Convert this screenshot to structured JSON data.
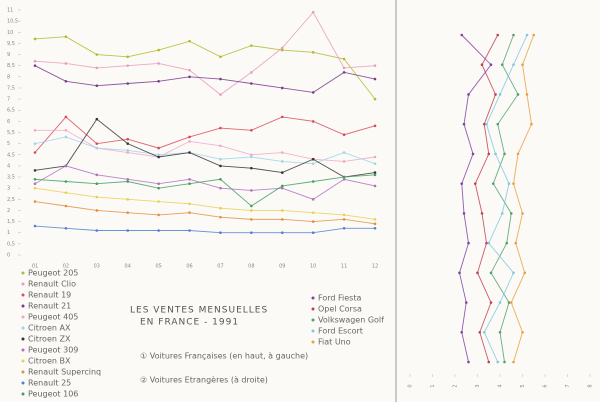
{
  "chart_data": [
    {
      "type": "line",
      "orientation": "vertical",
      "title": [
        "LES VENTES MENSUELLES",
        "EN FRANCE - 1991"
      ],
      "annotations": [
        "① Voitures Françaises (en haut, à gauche)",
        "② Voitures Etrangères (à droite)"
      ],
      "categories": [
        "01",
        "02",
        "03",
        "04",
        "05",
        "06",
        "07",
        "08",
        "09",
        "10",
        "11",
        "12"
      ],
      "ylim": [
        0,
        11
      ],
      "yticks": [
        0,
        {
          "value": 0.5,
          "label": "0,5"
        },
        1,
        {
          "value": 1.5,
          "label": "1,5"
        },
        2,
        {
          "value": 2.5,
          "label": "2,5"
        },
        3,
        {
          "value": 3.5,
          "label": "3,5"
        },
        4,
        {
          "value": 4.5,
          "label": "4,5"
        },
        5,
        {
          "value": 5.5,
          "label": "5,5"
        },
        6,
        {
          "value": 6.5,
          "label": "6,5"
        },
        7,
        {
          "value": 7.5,
          "label": "7,5"
        },
        8,
        {
          "value": 8.5,
          "label": "8,5"
        },
        9,
        {
          "value": 9.5,
          "label": "9,5"
        },
        10,
        {
          "value": 10.5,
          "label": "10,5"
        },
        11
      ],
      "series": [
        {
          "name": "Peugeot 205",
          "color": "#b5b82a",
          "values": [
            9.7,
            9.8,
            9.0,
            8.9,
            9.2,
            9.6,
            8.9,
            9.4,
            9.2,
            9.1,
            8.8,
            7.0
          ]
        },
        {
          "name": "Renault Clio",
          "color": "#e89ac0",
          "values": [
            8.7,
            8.6,
            8.4,
            8.5,
            8.6,
            8.3,
            7.2,
            8.2,
            9.3,
            10.9,
            8.4,
            8.5
          ]
        },
        {
          "name": "Renault 19",
          "color": "#d94a5a",
          "values": [
            4.6,
            6.2,
            5.0,
            5.2,
            4.8,
            5.3,
            5.7,
            5.6,
            6.2,
            6.0,
            5.4,
            5.8
          ]
        },
        {
          "name": "Renault 21",
          "color": "#7a3a8a",
          "values": [
            8.5,
            7.8,
            7.6,
            7.7,
            7.8,
            8.0,
            7.9,
            7.7,
            7.5,
            7.3,
            8.2,
            7.9
          ]
        },
        {
          "name": "Peugeot 405",
          "color": "#f0a8c8",
          "values": [
            5.6,
            5.6,
            4.8,
            4.6,
            4.4,
            5.1,
            4.9,
            4.5,
            4.6,
            4.3,
            4.2,
            4.4
          ]
        },
        {
          "name": "Citroen AX",
          "color": "#9fd4e8",
          "values": [
            5.0,
            5.3,
            4.8,
            4.7,
            4.5,
            4.6,
            4.3,
            4.4,
            4.2,
            4.1,
            4.6,
            4.1
          ]
        },
        {
          "name": "Citroen ZX",
          "color": "#333333",
          "values": [
            3.8,
            4.0,
            6.1,
            5.0,
            4.4,
            4.6,
            4.0,
            3.9,
            3.7,
            4.3,
            3.5,
            3.7
          ]
        },
        {
          "name": "Peugeot 309",
          "color": "#b070c0",
          "values": [
            3.2,
            4.0,
            3.6,
            3.4,
            3.2,
            3.4,
            3.0,
            2.9,
            3.0,
            2.5,
            3.4,
            3.1
          ]
        },
        {
          "name": "Citroen BX",
          "color": "#e8d050",
          "values": [
            3.0,
            2.8,
            2.6,
            2.5,
            2.4,
            2.3,
            2.1,
            2.0,
            2.0,
            1.9,
            1.8,
            1.6
          ]
        },
        {
          "name": "Renault Supercinq",
          "color": "#e09040",
          "values": [
            2.4,
            2.2,
            2.0,
            1.9,
            1.8,
            1.9,
            1.7,
            1.6,
            1.6,
            1.5,
            1.6,
            1.4
          ]
        },
        {
          "name": "Renault 25",
          "color": "#5080d0",
          "values": [
            1.3,
            1.2,
            1.1,
            1.1,
            1.1,
            1.1,
            1.0,
            1.0,
            1.0,
            1.0,
            1.2,
            1.2
          ]
        },
        {
          "name": "Peugeot 106",
          "color": "#40a060",
          "values": [
            3.4,
            3.3,
            3.2,
            3.3,
            3.0,
            3.2,
            3.4,
            2.2,
            3.1,
            3.3,
            3.5,
            3.6
          ]
        }
      ]
    },
    {
      "type": "line",
      "orientation": "horizontal",
      "categories": [
        null,
        null,
        null,
        null,
        null,
        null,
        null,
        null,
        null,
        null,
        null,
        null
      ],
      "xlim": [
        0,
        8
      ],
      "xticks": [
        0,
        1,
        2,
        3,
        4,
        5,
        6,
        7,
        8
      ],
      "series": [
        {
          "name": "Ford Fiesta",
          "color": "#8040a0",
          "values": [
            2.3,
            3.6,
            2.6,
            2.4,
            2.8,
            2.3,
            2.4,
            2.6,
            2.2,
            2.5,
            2.3,
            2.6
          ]
        },
        {
          "name": "Opel Corsa",
          "color": "#c04050",
          "values": [
            3.9,
            3.2,
            3.8,
            3.3,
            3.5,
            2.9,
            3.2,
            3.4,
            3.0,
            3.6,
            3.1,
            3.5
          ]
        },
        {
          "name": "Volkswagen Golf",
          "color": "#50a070",
          "values": [
            4.6,
            4.1,
            4.8,
            3.9,
            4.2,
            3.7,
            4.5,
            4.3,
            3.6,
            4.4,
            4.0,
            4.2
          ]
        },
        {
          "name": "Ford Escort",
          "color": "#80c8e0",
          "values": [
            5.2,
            4.6,
            4.0,
            3.4,
            3.8,
            4.4,
            4.1,
            3.5,
            4.6,
            4.0,
            3.3,
            3.9
          ]
        },
        {
          "name": "Fiat Uno",
          "color": "#e8a040",
          "values": [
            5.5,
            5.0,
            5.2,
            5.4,
            4.8,
            4.6,
            5.0,
            4.7,
            5.1,
            4.5,
            5.0,
            4.6
          ]
        }
      ]
    }
  ]
}
